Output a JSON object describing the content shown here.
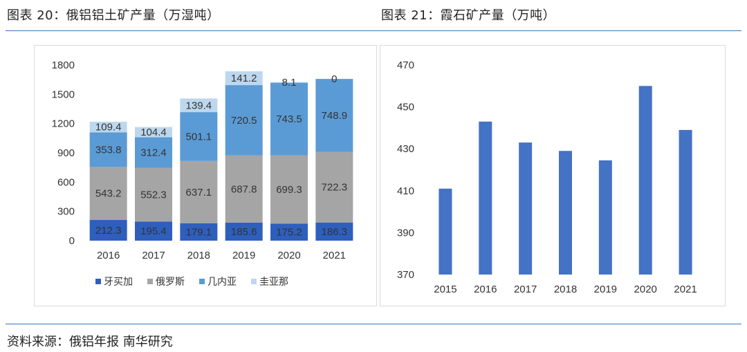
{
  "left_title": "图表 20：俄铝铝土矿产量（万湿吨）",
  "right_title": "图表 21：霞石矿产量（万吨）",
  "source": "资料来源：俄铝年报 南华研究",
  "colors": {
    "rule": "#3a74b5",
    "s1": "#2e5fbd",
    "s2": "#a5a5a5",
    "s3": "#5b9bd5",
    "s4": "#bdd7ee",
    "bar": "#4472c4"
  },
  "chart_data": [
    {
      "type": "bar",
      "stacked": true,
      "categories": [
        "2016",
        "2017",
        "2018",
        "2019",
        "2020",
        "2021"
      ],
      "series": [
        {
          "name": "牙买加",
          "values": [
            212.3,
            195.4,
            179.1,
            185.6,
            175.2,
            186.3
          ],
          "labels": [
            "212.3",
            "195.4",
            "179.1",
            "185.6",
            "175.2",
            "186.3"
          ],
          "color": "#2e5fbd"
        },
        {
          "name": "俄罗斯",
          "values": [
            543.2,
            552.3,
            637.1,
            687.8,
            699.3,
            722.3
          ],
          "labels": [
            "543.2",
            "552.3",
            "637.1",
            "687.8",
            "699.3",
            "722.3"
          ],
          "color": "#a5a5a5"
        },
        {
          "name": "几内亚",
          "values": [
            353.8,
            312.4,
            501.1,
            720.5,
            743.5,
            748.9
          ],
          "labels": [
            "353.8",
            "312.4",
            "501.1",
            "720.5",
            "743.5",
            "748.9"
          ],
          "color": "#5b9bd5"
        },
        {
          "name": "圭亚那",
          "values": [
            109.4,
            104.4,
            139.4,
            141.2,
            8.1,
            0
          ],
          "labels": [
            "109.4",
            "104.4",
            "139.4",
            "141.2",
            "8.1",
            "0"
          ],
          "color": "#bdd7ee"
        }
      ],
      "ylim": [
        0,
        1800
      ],
      "yticks": [
        "0",
        "300",
        "600",
        "900",
        "1200",
        "1500",
        "1800"
      ],
      "legend": "bottom",
      "grid": false
    },
    {
      "type": "bar",
      "categories": [
        "2015",
        "2016",
        "2017",
        "2018",
        "2019",
        "2020",
        "2021"
      ],
      "values": [
        411,
        443,
        433,
        429,
        424.5,
        460,
        439
      ],
      "ylim": [
        370,
        470
      ],
      "yticks": [
        "370",
        "390",
        "410",
        "430",
        "450",
        "470"
      ],
      "grid": false,
      "color": "#4472c4"
    }
  ]
}
